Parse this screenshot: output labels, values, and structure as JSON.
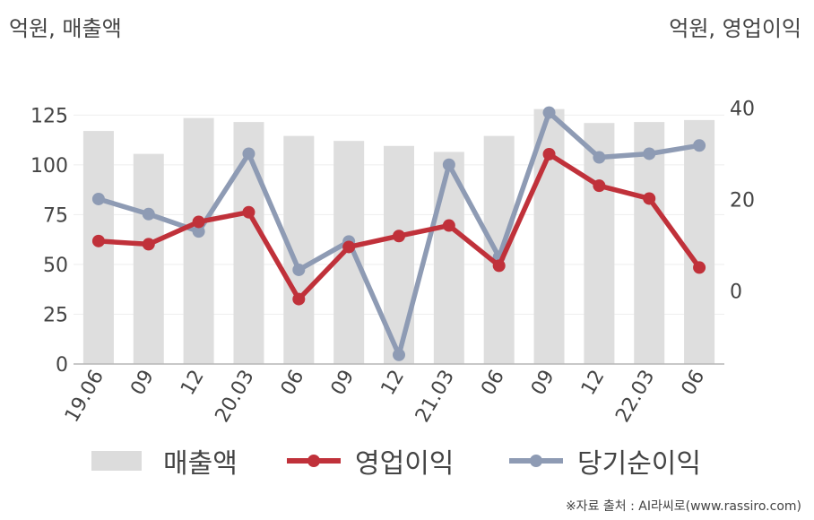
{
  "chart_data": {
    "type": "bar+line",
    "left_unit_label": "억원, 매출액",
    "right_unit_label": "억원, 영업이익",
    "categories": [
      "19.06",
      "09",
      "12",
      "20.03",
      "06",
      "09",
      "12",
      "21.03",
      "06",
      "09",
      "12",
      "22.03",
      "06"
    ],
    "ylim_left": [
      0,
      140
    ],
    "yticks_left": [
      0,
      25,
      50,
      75,
      100,
      125
    ],
    "ylim_right": [
      -16,
      45
    ],
    "yticks_right": [
      0,
      20,
      40
    ],
    "series": [
      {
        "name": "매출액",
        "kind": "bar",
        "axis": "left",
        "color": "#dedede",
        "values": [
          117,
          105.5,
          123.5,
          121.5,
          114.5,
          112,
          109.5,
          106.5,
          114.5,
          128,
          121,
          121.5,
          122.5
        ]
      },
      {
        "name": "영업이익",
        "kind": "line",
        "axis": "right",
        "color": "#c0313a",
        "values": [
          10.9,
          10.2,
          15.1,
          17.2,
          -1.8,
          9.6,
          12.0,
          14.3,
          5.5,
          29.9,
          23.0,
          20.2,
          5.1
        ]
      },
      {
        "name": "당기순이익",
        "kind": "line",
        "axis": "right",
        "color": "#8e9bb4",
        "values": [
          20.1,
          16.8,
          13.0,
          30.0,
          4.6,
          10.8,
          -14.0,
          27.6,
          7.4,
          39.0,
          29.2,
          30.0,
          31.8
        ]
      }
    ],
    "grid": true,
    "legend_position": "bottom"
  },
  "source_text": "※자료 출처 : AI라씨로(www.rassiro.com)"
}
